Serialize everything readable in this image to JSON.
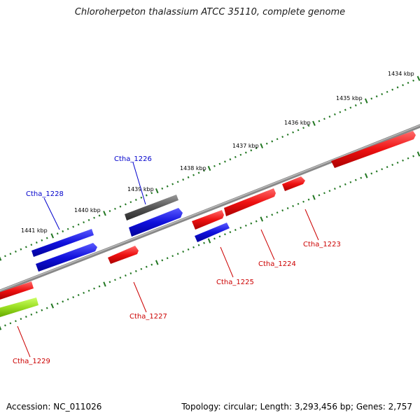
{
  "title": "Chloroherpeton thalassium ATCC 35110, complete genome",
  "footer": {
    "accession": "Accession: NC_011026",
    "info": "Topology: circular; Length: 3,293,456 bp; Genes: 2,757"
  },
  "colors": {
    "forward_gene": "#ee1111",
    "reverse_gene": "#1111dd",
    "gray_gene": "#555555",
    "green_gene": "#99dd22",
    "tick": "#227722",
    "backbone": "#888888",
    "label_blue": "#0000cc",
    "label_red": "#cc0000"
  },
  "kbp_labels": [
    "1434 kbp",
    "1435 kbp",
    "1436 kbp",
    "1437 kbp",
    "1438 kbp",
    "1439 kbp",
    "1440 kbp",
    "1441 kbp"
  ],
  "gene_labels": [
    "Ctha_1226",
    "Ctha_1228",
    "Ctha_1223",
    "Ctha_1224",
    "Ctha_1225",
    "Ctha_1227",
    "Ctha_1229"
  ]
}
